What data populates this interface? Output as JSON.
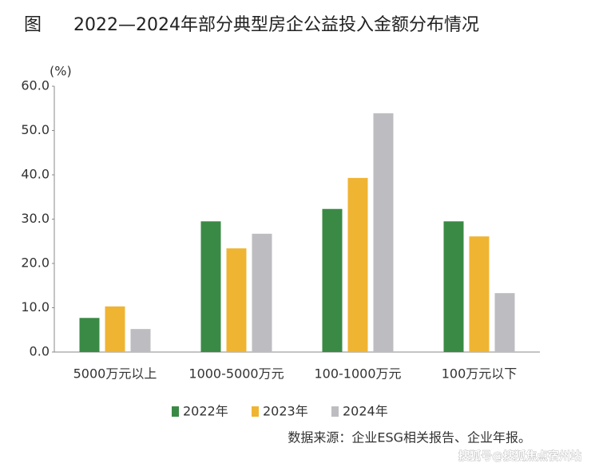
{
  "chart_data": {
    "type": "bar",
    "figure_label": "图",
    "title": "2022—2024年部分典型房企公益投入金额分布情况",
    "y_unit": "(%)",
    "categories": [
      "5000万元以上",
      "1000-5000万元",
      "100-1000万元",
      "100万元以下"
    ],
    "series": [
      {
        "name": "2022年",
        "color": "#3a8a45",
        "values": [
          7.7,
          29.5,
          32.3,
          29.5
        ]
      },
      {
        "name": "2023年",
        "color": "#f0b433",
        "values": [
          10.3,
          23.4,
          39.3,
          26.1
        ]
      },
      {
        "name": "2024年",
        "color": "#bdbdc1",
        "values": [
          5.2,
          26.7,
          53.9,
          13.3
        ]
      }
    ],
    "ylim": [
      0,
      60
    ],
    "yticks": [
      {
        "value": 0,
        "label": "0.0"
      },
      {
        "value": 10,
        "label": "10.0"
      },
      {
        "value": 20,
        "label": "20.0"
      },
      {
        "value": 30,
        "label": "30.0"
      },
      {
        "value": 40,
        "label": "40.0"
      },
      {
        "value": 50,
        "label": "50.0"
      },
      {
        "value": 60,
        "label": "60.0"
      }
    ],
    "grid": false,
    "source": "数据来源：企业ESG相关报告、企业年报。",
    "watermark": "搜狐号@搜狐焦点宿州站"
  }
}
